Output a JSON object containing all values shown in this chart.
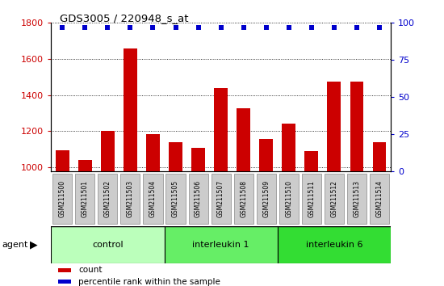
{
  "title": "GDS3005 / 220948_s_at",
  "samples": [
    "GSM211500",
    "GSM211501",
    "GSM211502",
    "GSM211503",
    "GSM211504",
    "GSM211505",
    "GSM211506",
    "GSM211507",
    "GSM211508",
    "GSM211509",
    "GSM211510",
    "GSM211511",
    "GSM211512",
    "GSM211513",
    "GSM211514"
  ],
  "counts": [
    1095,
    1040,
    1200,
    1660,
    1185,
    1140,
    1105,
    1440,
    1325,
    1155,
    1240,
    1090,
    1475,
    1475,
    1140
  ],
  "percentile": [
    97,
    97,
    97,
    97,
    97,
    97,
    97,
    97,
    97,
    97,
    97,
    97,
    97,
    97,
    97
  ],
  "bar_color": "#cc0000",
  "dot_color": "#0000cc",
  "ylim_left": [
    975,
    1800
  ],
  "ylim_right": [
    0,
    100
  ],
  "yticks_left": [
    1000,
    1200,
    1400,
    1600,
    1800
  ],
  "yticks_right": [
    0,
    25,
    50,
    75,
    100
  ],
  "groups": [
    {
      "label": "control",
      "start": 0,
      "end": 5,
      "color": "#bbffbb"
    },
    {
      "label": "interleukin 1",
      "start": 5,
      "end": 10,
      "color": "#66ee66"
    },
    {
      "label": "interleukin 6",
      "start": 10,
      "end": 15,
      "color": "#33dd33"
    }
  ],
  "agent_label": "agent",
  "legend_count_label": "count",
  "legend_pct_label": "percentile rank within the sample",
  "plot_bg_color": "#ffffff",
  "tick_label_color_left": "#cc0000",
  "tick_label_color_right": "#0000cc",
  "tick_box_color": "#cccccc",
  "n_samples": 15
}
